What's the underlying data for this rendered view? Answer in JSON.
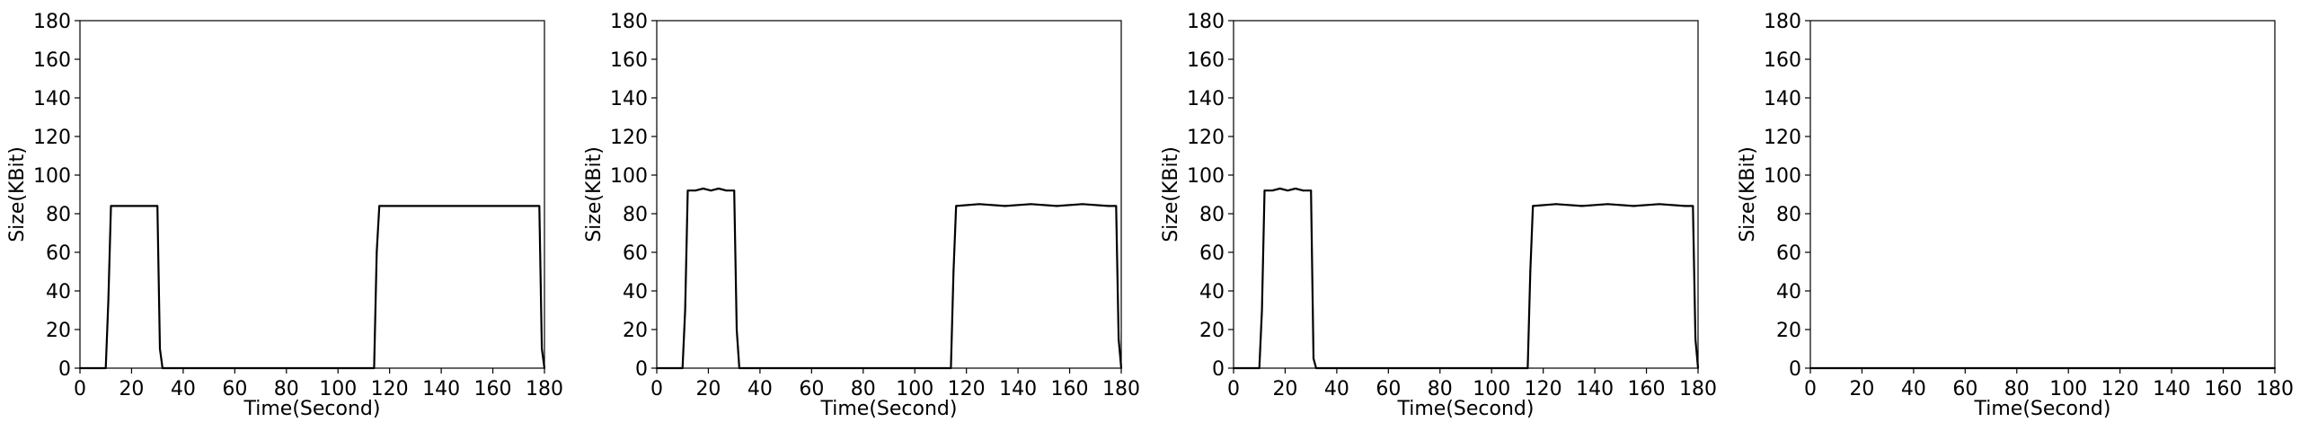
{
  "chart_data": [
    {
      "type": "line",
      "xlabel": "Time(Second)",
      "ylabel": "Size(KBit)",
      "xlim": [
        0,
        180
      ],
      "ylim": [
        0,
        180
      ],
      "xticks": [
        "0",
        "20",
        "40",
        "60",
        "80",
        "100",
        "120",
        "140",
        "160",
        "180"
      ],
      "yticks": [
        "0",
        "20",
        "40",
        "60",
        "80",
        "100",
        "120",
        "140",
        "160",
        "180"
      ],
      "grid": false,
      "series": [
        {
          "color": "#000000",
          "x": [
            0,
            10,
            11,
            12,
            30,
            31,
            32,
            114,
            115,
            116,
            178,
            179,
            180
          ],
          "y": [
            0,
            0,
            35,
            84,
            84,
            10,
            0,
            0,
            60,
            84,
            84,
            10,
            0
          ]
        }
      ]
    },
    {
      "type": "line",
      "xlabel": "Time(Second)",
      "ylabel": "Size(KBit)",
      "xlim": [
        0,
        180
      ],
      "ylim": [
        0,
        180
      ],
      "xticks": [
        "0",
        "20",
        "40",
        "60",
        "80",
        "100",
        "120",
        "140",
        "160",
        "180"
      ],
      "yticks": [
        "0",
        "20",
        "40",
        "60",
        "80",
        "100",
        "120",
        "140",
        "160",
        "180"
      ],
      "grid": false,
      "series": [
        {
          "color": "#000000",
          "x": [
            0,
            10,
            11,
            12,
            15,
            18,
            21,
            24,
            27,
            30,
            31,
            32,
            114,
            115,
            116,
            125,
            135,
            145,
            155,
            165,
            175,
            178,
            179,
            180
          ],
          "y": [
            0,
            0,
            30,
            92,
            92,
            93,
            92,
            93,
            92,
            92,
            20,
            0,
            0,
            50,
            84,
            85,
            84,
            85,
            84,
            85,
            84,
            84,
            15,
            0
          ]
        }
      ]
    },
    {
      "type": "line",
      "xlabel": "Time(Second)",
      "ylabel": "Size(KBit)",
      "xlim": [
        0,
        180
      ],
      "ylim": [
        0,
        180
      ],
      "xticks": [
        "0",
        "20",
        "40",
        "60",
        "80",
        "100",
        "120",
        "140",
        "160",
        "180"
      ],
      "yticks": [
        "0",
        "20",
        "40",
        "60",
        "80",
        "100",
        "120",
        "140",
        "160",
        "180"
      ],
      "grid": false,
      "series": [
        {
          "color": "#000000",
          "x": [
            0,
            10,
            11,
            12,
            15,
            18,
            21,
            24,
            27,
            30,
            31,
            32,
            114,
            115,
            116,
            125,
            135,
            145,
            155,
            165,
            175,
            178,
            179,
            180
          ],
          "y": [
            0,
            0,
            30,
            92,
            92,
            93,
            92,
            93,
            92,
            92,
            5,
            0,
            0,
            50,
            84,
            85,
            84,
            85,
            84,
            85,
            84,
            84,
            15,
            0
          ]
        }
      ]
    },
    {
      "type": "line",
      "xlabel": "Time(Second)",
      "ylabel": "Size(KBit)",
      "xlim": [
        0,
        180
      ],
      "ylim": [
        0,
        180
      ],
      "xticks": [
        "0",
        "20",
        "40",
        "60",
        "80",
        "100",
        "120",
        "140",
        "160",
        "180"
      ],
      "yticks": [
        "0",
        "20",
        "40",
        "60",
        "80",
        "100",
        "120",
        "140",
        "160",
        "180"
      ],
      "grid": false,
      "series": [
        {
          "color": "#000000",
          "x": [
            0,
            180
          ],
          "y": [
            0,
            0
          ]
        }
      ]
    }
  ]
}
